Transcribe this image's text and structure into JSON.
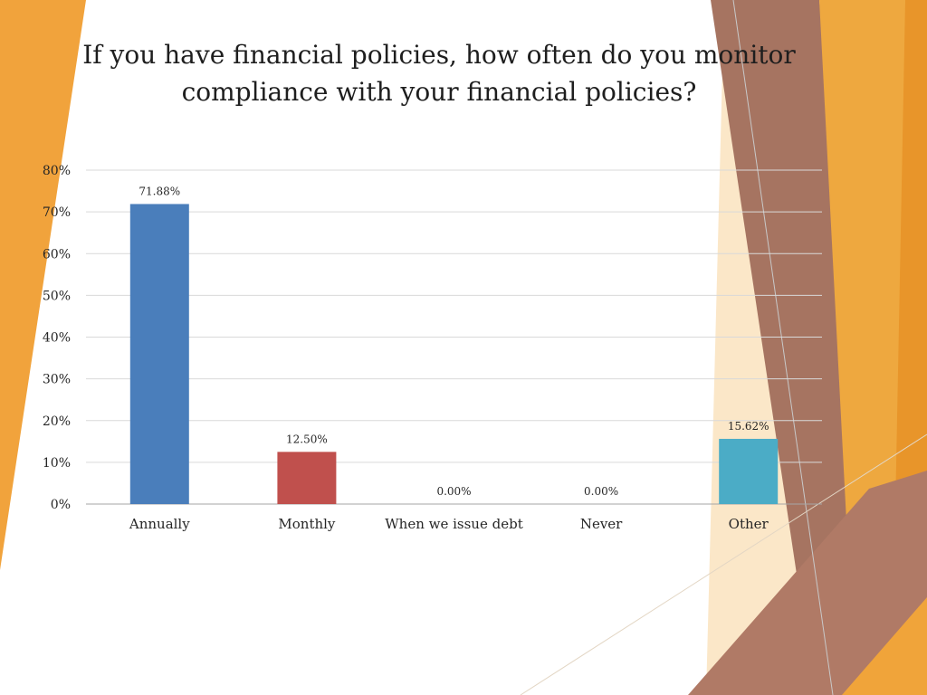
{
  "slide": {
    "title": "If you have financial policies, how often do you monitor compliance with your financial policies?"
  },
  "theme": {
    "accent_orange": "#f1a33c",
    "accent_light_orange": "#f8d9a8",
    "accent_brown": "#a06d5c",
    "grid_color": "#d9d9d9",
    "axis_color": "#a6a6a6"
  },
  "chart_data": {
    "type": "bar",
    "title": "If you have financial policies, how often do you monitor compliance with your financial policies?",
    "categories": [
      "Annually",
      "Monthly",
      "When we issue debt",
      "Never",
      "Other"
    ],
    "values": [
      71.88,
      12.5,
      0.0,
      0.0,
      15.62
    ],
    "value_labels": [
      "71.88%",
      "12.50%",
      "0.00%",
      "0.00%",
      "15.62%"
    ],
    "colors": [
      "#4a7ebb",
      "#c0504d",
      "#9bbb59",
      "#8064a2",
      "#4bacc6"
    ],
    "ylim": [
      0,
      80
    ],
    "ytick_labels": [
      "0%",
      "10%",
      "20%",
      "30%",
      "40%",
      "50%",
      "60%",
      "70%",
      "80%"
    ],
    "grid": true,
    "legend": "none",
    "xlabel": "",
    "ylabel": ""
  }
}
